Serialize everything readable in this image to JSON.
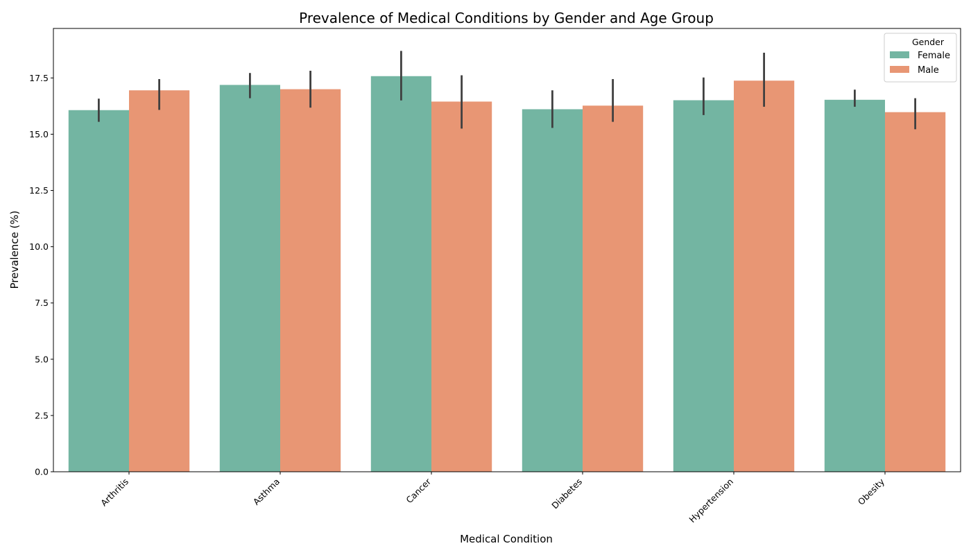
{
  "chart_data": {
    "type": "bar",
    "title": "Prevalence of Medical Conditions by Gender and Age Group",
    "xlabel": "Medical Condition",
    "ylabel": "Prevalence (%)",
    "categories": [
      "Arthritis",
      "Asthma",
      "Cancer",
      "Diabetes",
      "Hypertension",
      "Obesity"
    ],
    "ylim": [
      0,
      19.7
    ],
    "yticks": [
      0.0,
      2.5,
      5.0,
      7.5,
      10.0,
      12.5,
      15.0,
      17.5
    ],
    "ytick_labels": [
      "0.0",
      "2.5",
      "5.0",
      "7.5",
      "10.0",
      "12.5",
      "15.0",
      "17.5"
    ],
    "grid": false,
    "legend": {
      "title": "Gender",
      "position": "top-right"
    },
    "series": [
      {
        "name": "Female",
        "color": "#73b5a2",
        "values": [
          16.07,
          17.19,
          17.58,
          16.11,
          16.51,
          16.53
        ],
        "error_low": [
          15.55,
          16.6,
          16.5,
          15.28,
          15.85,
          16.22
        ],
        "error_high": [
          16.58,
          17.72,
          18.7,
          16.95,
          17.52,
          16.98
        ]
      },
      {
        "name": "Male",
        "color": "#e89674",
        "values": [
          16.95,
          17.0,
          16.45,
          16.27,
          17.38,
          15.98
        ],
        "error_low": [
          16.08,
          16.18,
          15.25,
          15.55,
          16.22,
          15.22
        ],
        "error_high": [
          17.45,
          17.82,
          17.62,
          17.45,
          18.62,
          16.6
        ]
      }
    ]
  }
}
